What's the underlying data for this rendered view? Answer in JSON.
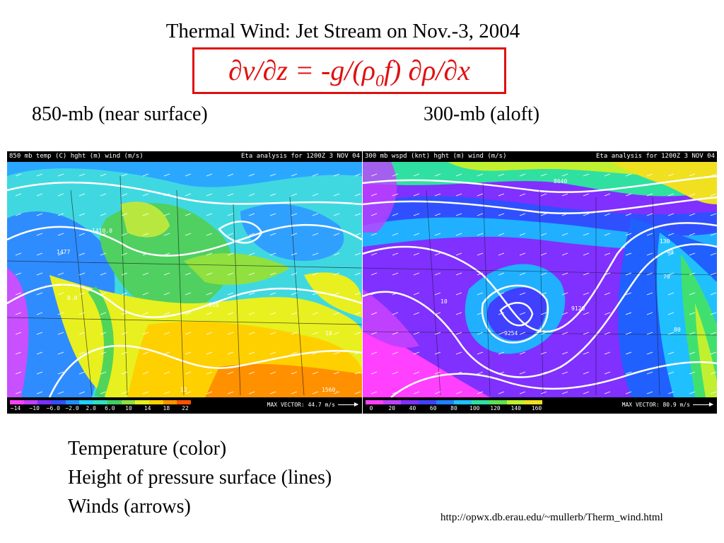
{
  "slide": {
    "title": "Thermal Wind: Jet Stream on Nov.-3, 2004",
    "equation": {
      "lhs": "∂v/∂z = -g/(ρ",
      "sub": "0",
      "rhs": "f) ∂ρ/∂x"
    },
    "label_left": "850-mb (near surface)",
    "label_right": "300-mb (aloft)",
    "captions": [
      "Temperature (color)",
      "Height of pressure surface (lines)",
      "Winds (arrows)"
    ],
    "source": "http://opwx.db.erau.edu/~mullerb/Therm_wind.html"
  },
  "map_850": {
    "header_left": "850 mb temp (C) hght (m) wind (m/s)",
    "header_right": "Eta analysis for 1200Z  3 NOV 04",
    "colorbar_ticks": [
      "−14",
      "−10",
      "−6.0",
      "−2.0",
      "2.0",
      "6.0",
      "10",
      "14",
      "18",
      "22"
    ],
    "colorbar_colors": [
      "#ff40ff",
      "#c040ff",
      "#7a30ff",
      "#3050ff",
      "#2090ff",
      "#20d0ff",
      "#30e0c0",
      "#40d060",
      "#90e040",
      "#e8f020",
      "#ffd000",
      "#ff9000",
      "#ff5000"
    ],
    "max_vector": "MAX VECTOR:  44.7 m/s",
    "annotations": [
      "1410.0",
      "1477",
      "8.0",
      "810",
      "18",
      "12",
      "1560."
    ]
  },
  "map_300": {
    "header_left": "300 mb wspd (knt) hght (m) wind (m/s)",
    "header_right": "Eta analysis for 1200Z  3 NOV 04",
    "colorbar_ticks": [
      "0",
      "20",
      "40",
      "60",
      "80",
      "100",
      "120",
      "140",
      "160"
    ],
    "colorbar_colors": [
      "#ff40ff",
      "#c040ff",
      "#8030ff",
      "#4040ff",
      "#2080ff",
      "#20c0ff",
      "#30e0a0",
      "#60e050",
      "#c0f030",
      "#f0e020"
    ],
    "max_vector": "MAX VECTOR:  80.9 m/s",
    "annotations": [
      "8640",
      "9120",
      "9254",
      "10",
      "40",
      "70",
      "80",
      "130"
    ]
  }
}
